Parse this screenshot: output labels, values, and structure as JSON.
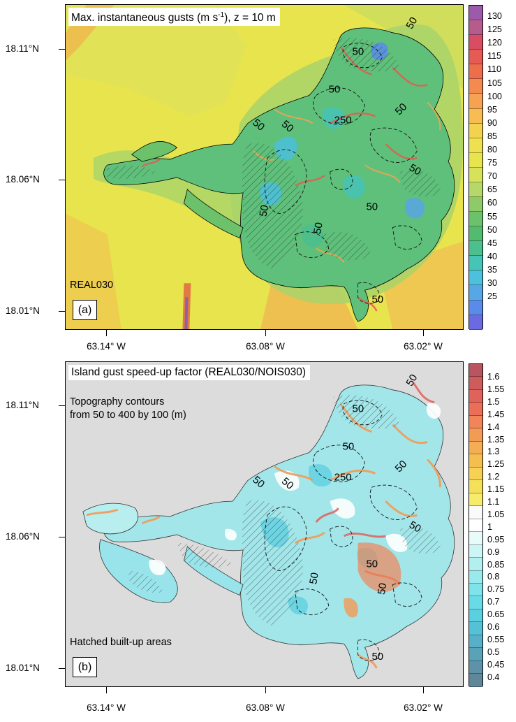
{
  "figure": {
    "panel_a": {
      "title": "Max. instantaneous gusts (m s-1), z = 10 m",
      "title_main": "Max. instantaneous gusts (m s",
      "title_sup": "-1",
      "title_tail": "), z = 10 m",
      "run_label": "REAL030",
      "panel_label": "(a)",
      "colorbar_labels": [
        "130",
        "125",
        "120",
        "115",
        "110",
        "105",
        "100",
        "95",
        "90",
        "85",
        "80",
        "75",
        "70",
        "65",
        "60",
        "55",
        "50",
        "45",
        "40",
        "35",
        "30",
        "25"
      ],
      "colorbar_colors": [
        "#9e5aaa",
        "#b75b8c",
        "#d84d62",
        "#e55a52",
        "#ee6d4a",
        "#f38a4f",
        "#f5a352",
        "#f7bd52",
        "#f2d24e",
        "#eee04e",
        "#e8e44e",
        "#d6e25a",
        "#b6d86a",
        "#8ecb68",
        "#6cc26a",
        "#52bb70",
        "#4cbf8f",
        "#46c4b6",
        "#4cc0dc",
        "#57a7e6",
        "#5b8bea",
        "#6b6ae2"
      ]
    },
    "panel_b": {
      "title": "Island gust speed-up factor (REAL030/NOIS030)",
      "topo_note_line1": "Topography contours",
      "topo_note_line2": "from 50 to 400 by 100 (m)",
      "hatch_note": "Hatched built-up areas",
      "panel_label": "(b)",
      "colorbar_labels": [
        "1.6",
        "1.55",
        "1.5",
        "1.45",
        "1.4",
        "1.35",
        "1.3",
        "1.25",
        "1.2",
        "1.15",
        "1.1",
        "1.05",
        "1",
        "0.95",
        "0.9",
        "0.85",
        "0.8",
        "0.75",
        "0.7",
        "0.65",
        "0.6",
        "0.55",
        "0.5",
        "0.45",
        "0.4"
      ],
      "colorbar_colors": [
        "#b85560",
        "#cf5c5c",
        "#e0625a",
        "#eb6e58",
        "#f18458",
        "#f39a55",
        "#f4ad52",
        "#f5bf50",
        "#f6d152",
        "#f5e05a",
        "#f7ec6a",
        "#fafafa",
        "#ffffff",
        "#e6fbfa",
        "#ccf5f5",
        "#b2efef",
        "#98eaec",
        "#7ee4ea",
        "#68dbe6",
        "#5acfe0",
        "#55c0d6",
        "#56b1c8",
        "#5aa2b8",
        "#5d92a8",
        "#5e8799"
      ]
    },
    "y_axis_labels": [
      "18.11°N",
      "18.06°N",
      "18.01°N"
    ],
    "x_axis_labels": [
      "63.14° W",
      "63.08° W",
      "63.02° W"
    ],
    "contour_labels_a": [
      "50",
      "50",
      "50",
      "250",
      "50",
      "50",
      "50",
      "50",
      "50",
      "50",
      "50",
      "50"
    ],
    "contour_labels_b": [
      "50",
      "50",
      "50",
      "250",
      "50",
      "50",
      "50",
      "50",
      "50",
      "50",
      "50",
      "50"
    ]
  }
}
